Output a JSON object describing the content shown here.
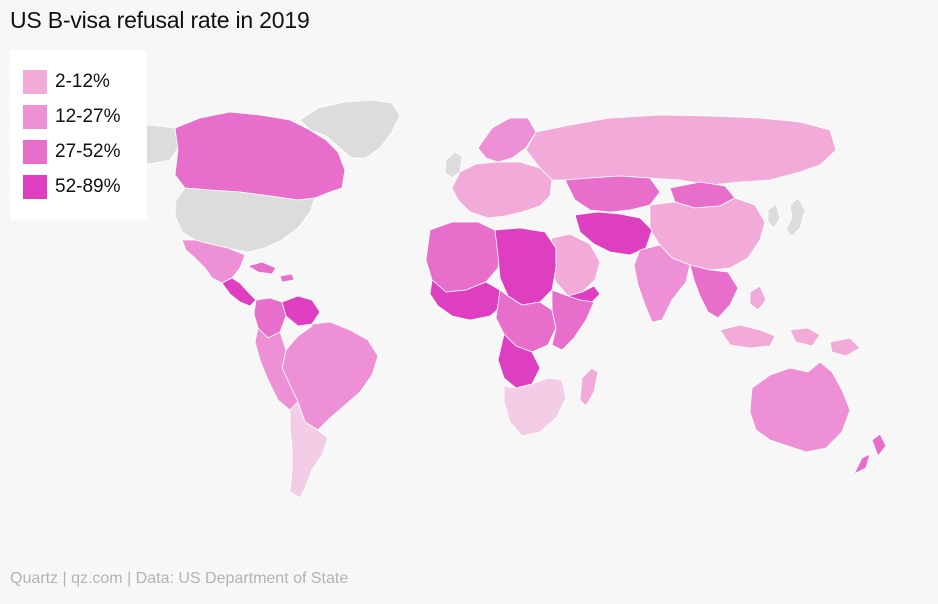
{
  "title": "US B-visa refusal rate in 2019",
  "legend": [
    {
      "label": "2-12%",
      "color": "#f2aad9"
    },
    {
      "label": "12-27%",
      "color": "#ed90d5"
    },
    {
      "label": "27-52%",
      "color": "#e76fcb"
    },
    {
      "label": "52-89%",
      "color": "#de3fc0"
    }
  ],
  "colors": {
    "no_data": "#dcdcdc",
    "background": "#f7f7f7",
    "bin_1": "#f2aad9",
    "bin_2": "#ed90d5",
    "bin_3": "#e76fcb",
    "bin_4": "#de3fc0",
    "very_low": "#f3cde6"
  },
  "source": "Quartz | qz.com | Data: US Department of State",
  "regions": [
    {
      "name": "greenland",
      "bin": "no_data"
    },
    {
      "name": "usa",
      "bin": "no_data"
    },
    {
      "name": "alaska",
      "bin": "no_data"
    },
    {
      "name": "canada",
      "bin": "bin_3"
    },
    {
      "name": "mexico",
      "bin": "bin_2"
    },
    {
      "name": "central-america",
      "bin": "bin_4"
    },
    {
      "name": "caribbean",
      "bin": "bin_3"
    },
    {
      "name": "venezuela",
      "bin": "bin_4"
    },
    {
      "name": "colombia",
      "bin": "bin_3"
    },
    {
      "name": "brazil",
      "bin": "bin_2"
    },
    {
      "name": "peru-bolivia",
      "bin": "bin_2"
    },
    {
      "name": "argentina-chile",
      "bin": "very_low"
    },
    {
      "name": "europe",
      "bin": "bin_1"
    },
    {
      "name": "scandinavia",
      "bin": "bin_2"
    },
    {
      "name": "uk-ireland",
      "bin": "no_data"
    },
    {
      "name": "russia",
      "bin": "bin_1"
    },
    {
      "name": "central-asia",
      "bin": "bin_3"
    },
    {
      "name": "mongolia",
      "bin": "bin_3"
    },
    {
      "name": "china",
      "bin": "bin_1"
    },
    {
      "name": "japan-korea",
      "bin": "no_data"
    },
    {
      "name": "iran-afghanistan",
      "bin": "bin_4"
    },
    {
      "name": "india",
      "bin": "bin_2"
    },
    {
      "name": "arabia",
      "bin": "bin_1"
    },
    {
      "name": "yemen",
      "bin": "bin_4"
    },
    {
      "name": "north-africa",
      "bin": "bin_3"
    },
    {
      "name": "libya-sudan",
      "bin": "bin_4"
    },
    {
      "name": "west-africa",
      "bin": "bin_4"
    },
    {
      "name": "central-africa",
      "bin": "bin_3"
    },
    {
      "name": "congo",
      "bin": "bin_4"
    },
    {
      "name": "horn-africa",
      "bin": "bin_3"
    },
    {
      "name": "southern-africa",
      "bin": "very_low"
    },
    {
      "name": "madagascar",
      "bin": "bin_1"
    },
    {
      "name": "southeast-asia",
      "bin": "bin_3"
    },
    {
      "name": "indonesia",
      "bin": "bin_1"
    },
    {
      "name": "australia",
      "bin": "bin_2"
    },
    {
      "name": "new-zealand",
      "bin": "bin_3"
    }
  ]
}
